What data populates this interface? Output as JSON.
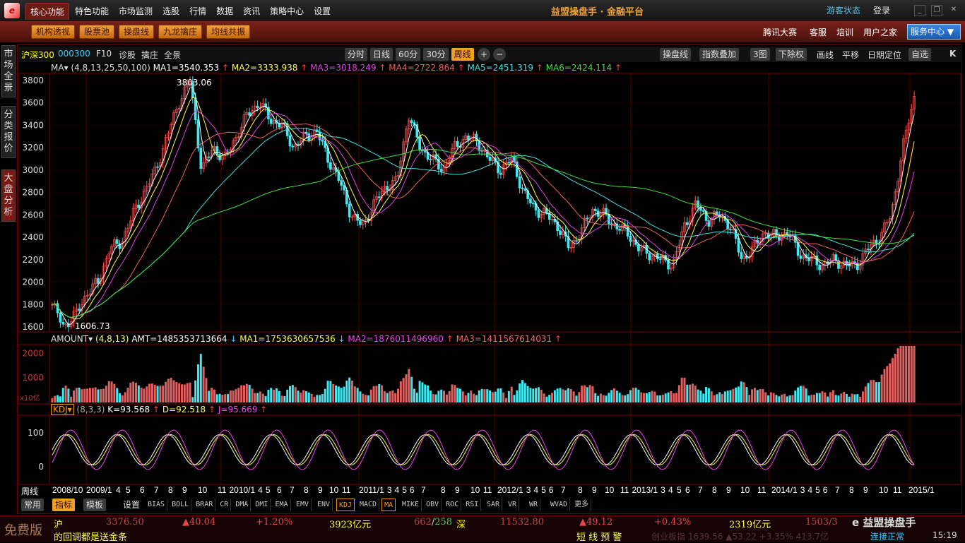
{
  "app": {
    "title": "益盟操盘手 · 金融平台",
    "guest": "游客状态",
    "login": "登录"
  },
  "menu": [
    "核心功能",
    "特色功能",
    "市场监测",
    "选股",
    "行情",
    "数据",
    "资讯",
    "策略中心",
    "设置"
  ],
  "toolbar": {
    "buttons": [
      "机构透视",
      "股票池",
      "操盘线",
      "九龙擒庄",
      "均线共振"
    ],
    "right_links": [
      "腾讯大赛",
      "客服",
      "培训",
      "用户之家"
    ],
    "service": "服务中心"
  },
  "side_tabs": [
    "市场全景",
    "分类报价",
    "大盘分析"
  ],
  "chart_toolbar": {
    "name": "沪深300",
    "code": "000300",
    "links": [
      "F10",
      "诊股",
      "擒庄",
      "全景"
    ],
    "periods": [
      "分时",
      "日线",
      "60分",
      "30分",
      "周线"
    ],
    "active_period": "周线",
    "right": [
      "操盘线",
      "指数叠加",
      "3图",
      "下除权",
      "画线",
      "平移",
      "日期定位",
      "自选"
    ]
  },
  "ma": {
    "label": "MA",
    "params": "(4,8,13,25,50,100)",
    "values": [
      "MA1=3540.353",
      "MA2=3333.938",
      "MA3=3018.249",
      "MA4=2722.864",
      "MA5=2451.319",
      "MA6=2424.114"
    ],
    "colors": [
      "#ffffff",
      "#ffff40",
      "#e040e0",
      "#f06060",
      "#40e0e0",
      "#40e040"
    ]
  },
  "price_axis": [
    "3800",
    "3600",
    "3400",
    "3200",
    "3000",
    "2800",
    "2600",
    "2400",
    "2200",
    "2000",
    "1800",
    "1600"
  ],
  "price_high": "3803.06",
  "price_low": "1606.73",
  "price_path": [
    1800,
    1607,
    1700,
    1900,
    2000,
    2300,
    2350,
    2600,
    2800,
    3000,
    3300,
    3600,
    3803,
    3000,
    3200,
    3100,
    3300,
    3500,
    3600,
    3450,
    3400,
    3200,
    3300,
    3350,
    3100,
    2900,
    2600,
    2500,
    2700,
    2850,
    2900,
    3500,
    3200,
    3100,
    3000,
    3200,
    3300,
    3250,
    3100,
    3000,
    3100,
    2800,
    2650,
    2600,
    2500,
    2300,
    2450,
    2650,
    2600,
    2500,
    2450,
    2300,
    2250,
    2200,
    2150,
    2500,
    2700,
    2550,
    2600,
    2500,
    2200,
    2300,
    2450,
    2400,
    2450,
    2250,
    2200,
    2150,
    2200,
    2150,
    2150,
    2300,
    2400,
    2600,
    3200,
    3650
  ],
  "amount": {
    "label": "AMOUNT",
    "params": "(4,8,13)",
    "values": [
      "AMT=1485353713664",
      "MA1=1753630657536",
      "MA2=1876011496960",
      "MA3=1411567614031"
    ],
    "axis": [
      "2000",
      "1000"
    ],
    "unit": "x10亿"
  },
  "kdj": {
    "label": "KDJ",
    "params": "(8,3,3)",
    "values": [
      "K=93.568",
      "D=92.518",
      "J=95.669"
    ],
    "axis": [
      "100",
      "0"
    ]
  },
  "dates": [
    "周线",
    "2008/10",
    "2009/1",
    "4",
    "5",
    "6",
    "7",
    "8",
    "9",
    "10",
    "11",
    "2010/1",
    "4",
    "5",
    "6",
    "7",
    "8",
    "9",
    "10",
    "11",
    "2011/1",
    "3",
    "4",
    "5",
    "6",
    "7",
    "8",
    "9",
    "10",
    "11",
    "2012/1",
    "3",
    "4",
    "5",
    "6",
    "7",
    "8",
    "9",
    "10",
    "11",
    "2013/1",
    "3",
    "4",
    "5",
    "6",
    "7",
    "8",
    "9",
    "10",
    "11",
    "2014/1",
    "3",
    "4",
    "5",
    "6",
    "7",
    "8",
    "9",
    "10",
    "11",
    "2015/1"
  ],
  "indicator_bar": {
    "groups": [
      "常用",
      "指标",
      "模板"
    ],
    "settings": "设置",
    "tabs": [
      "BIAS",
      "BOLL",
      "BRAR",
      "CR",
      "DMA",
      "DMI",
      "EMA",
      "EMV",
      "ENV",
      "KDJ",
      "MACD",
      "MA",
      "MIKE",
      "OBV",
      "ROC",
      "RSI",
      "SAR",
      "VR",
      "WR",
      "WVAD",
      "更多"
    ]
  },
  "status": {
    "edition": "免费版",
    "sh": {
      "name": "沪",
      "price": "3376.50",
      "change": "▲40.04",
      "pct": "+1.20%",
      "amount": "3923亿元",
      "updown": "662",
      "down": "258"
    },
    "sz": {
      "name": "深",
      "price": "11532.80",
      "change": "▲49.12",
      "pct": "+0.43%",
      "amount": "2319亿元",
      "updown": "1503/3"
    },
    "ticker": "的回调都是送金条",
    "alert": "短 线 预 警",
    "cyb": "创业板指 1639.56 ▲53.22 +3.35% 413.7亿",
    "conn": "连接正常",
    "time": "15:19",
    "watermark": "益盟操盘手"
  }
}
